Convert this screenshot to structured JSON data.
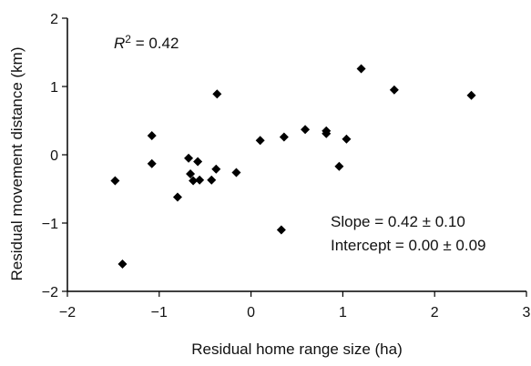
{
  "chart_data": {
    "type": "scatter",
    "title": "",
    "xlabel": "Residual home range size (ha)",
    "ylabel": "Residual movement distance (km)",
    "xlim": [
      -2,
      3
    ],
    "ylim": [
      -2,
      2
    ],
    "x_ticks": [
      -2,
      -1,
      0,
      1,
      2,
      3
    ],
    "y_ticks": [
      -2,
      -1,
      0,
      1,
      2
    ],
    "x_tick_labels": [
      "−2",
      "−1",
      "0",
      "1",
      "2",
      "3"
    ],
    "y_tick_labels": [
      "−2",
      "−1",
      "0",
      "1",
      "2"
    ],
    "grid": false,
    "marker": "diamond",
    "point_color": "#000000",
    "annotations": {
      "r2_symbol": "R",
      "r2_sup": "2",
      "r2_text": " = 0.42",
      "slope_text": "Slope = 0.42 ± 0.10",
      "intercept_text": "Intercept = 0.00 ± 0.09"
    },
    "points": [
      {
        "x": -1.48,
        "y": -0.38
      },
      {
        "x": -1.4,
        "y": -1.6
      },
      {
        "x": -1.08,
        "y": 0.28
      },
      {
        "x": -1.08,
        "y": -0.13
      },
      {
        "x": -0.8,
        "y": -0.62
      },
      {
        "x": -0.68,
        "y": -0.05
      },
      {
        "x": -0.66,
        "y": -0.28
      },
      {
        "x": -0.63,
        "y": -0.38
      },
      {
        "x": -0.58,
        "y": -0.1
      },
      {
        "x": -0.56,
        "y": -0.37
      },
      {
        "x": -0.43,
        "y": -0.37
      },
      {
        "x": -0.38,
        "y": -0.21
      },
      {
        "x": -0.37,
        "y": 0.89
      },
      {
        "x": -0.16,
        "y": -0.26
      },
      {
        "x": 0.1,
        "y": 0.21
      },
      {
        "x": 0.33,
        "y": -1.1
      },
      {
        "x": 0.36,
        "y": 0.26
      },
      {
        "x": 0.59,
        "y": 0.37
      },
      {
        "x": 0.82,
        "y": 0.35
      },
      {
        "x": 0.82,
        "y": 0.31
      },
      {
        "x": 0.96,
        "y": -0.17
      },
      {
        "x": 1.04,
        "y": 0.23
      },
      {
        "x": 1.2,
        "y": 1.26
      },
      {
        "x": 1.56,
        "y": 0.95
      },
      {
        "x": 2.4,
        "y": 0.87
      }
    ]
  }
}
